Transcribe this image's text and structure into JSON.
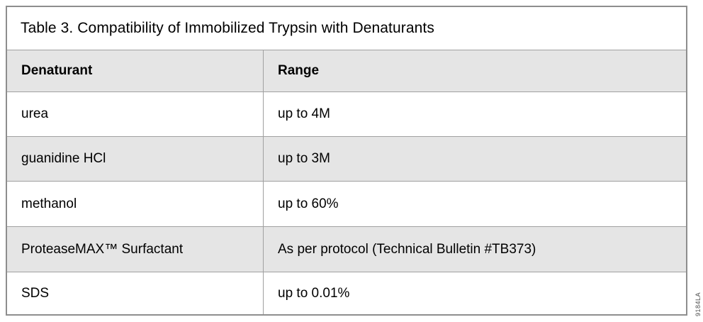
{
  "page": {
    "side_code": "9184LA"
  },
  "table": {
    "title": "Table 3. Compatibility of Immobilized Trypsin with Denaturants",
    "columns": [
      "Denaturant",
      "Range"
    ],
    "rows": [
      {
        "denaturant": "urea",
        "range": "up to 4M"
      },
      {
        "denaturant": "guanidine HCl",
        "range": "up to 3M"
      },
      {
        "denaturant": "methanol",
        "range": "up to 60%"
      },
      {
        "denaturant": "ProteaseMAX™ Surfactant",
        "range": "As per protocol (Technical Bulletin #TB373)"
      },
      {
        "denaturant": "SDS",
        "range": "up to 0.01%"
      }
    ],
    "colors": {
      "page_bg": "#ffffff",
      "header_bg": "#e5e5e5",
      "alt_row_bg": "#e5e5e5",
      "border": "#a0a0a0",
      "outer_border": "#8e8e8e",
      "text": "#000000"
    }
  }
}
